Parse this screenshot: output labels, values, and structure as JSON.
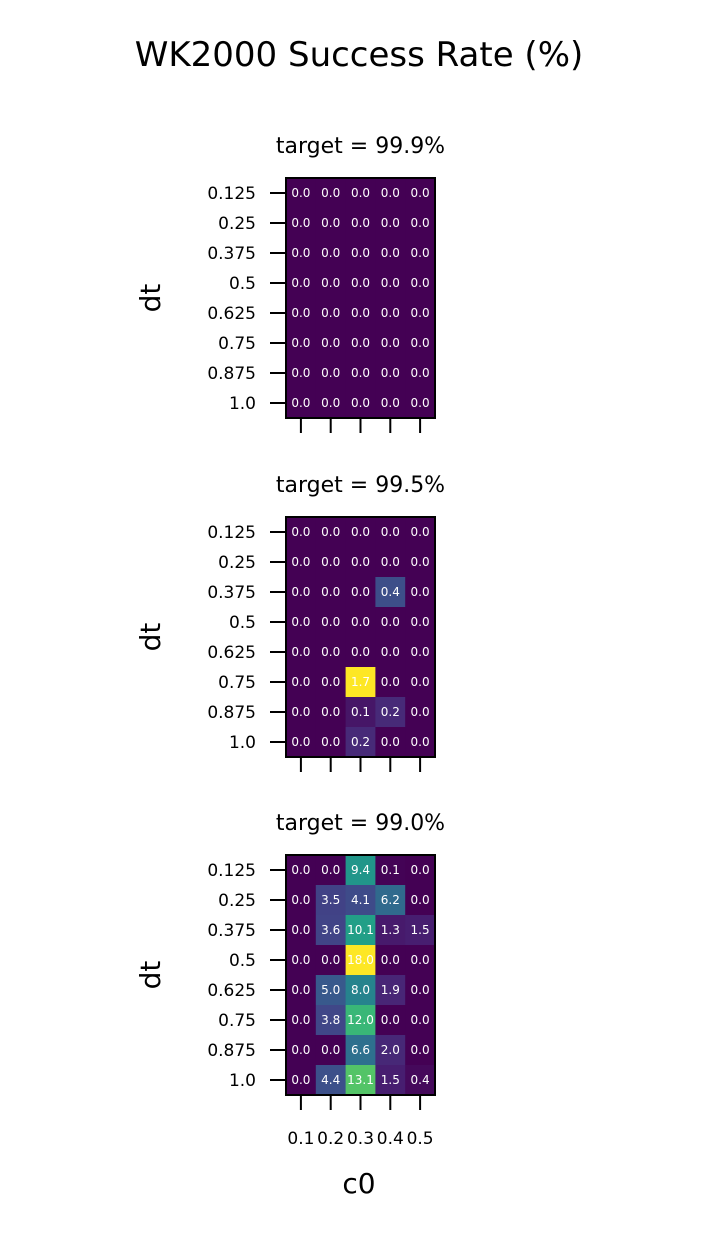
{
  "chart_data": {
    "type": "heatmap",
    "title": "WK2000 Success Rate (%)",
    "xlabel": "c0",
    "ylabel": "dt",
    "x": [
      "0.1",
      "0.2",
      "0.3",
      "0.4",
      "0.5"
    ],
    "y": [
      "0.125",
      "0.25",
      "0.375",
      "0.5",
      "0.625",
      "0.75",
      "0.875",
      "1.0"
    ],
    "colormap": "viridis",
    "panels": [
      {
        "title": "target = 99.9%",
        "values": [
          [
            0.0,
            0.0,
            0.0,
            0.0,
            0.0
          ],
          [
            0.0,
            0.0,
            0.0,
            0.0,
            0.0
          ],
          [
            0.0,
            0.0,
            0.0,
            0.0,
            0.0
          ],
          [
            0.0,
            0.0,
            0.0,
            0.0,
            0.0
          ],
          [
            0.0,
            0.0,
            0.0,
            0.0,
            0.0
          ],
          [
            0.0,
            0.0,
            0.0,
            0.0,
            0.0
          ],
          [
            0.0,
            0.0,
            0.0,
            0.0,
            0.0
          ],
          [
            0.0,
            0.0,
            0.0,
            0.0,
            0.0
          ]
        ],
        "labels": [
          [
            "0.0",
            "0.0",
            "0.0",
            "0.0",
            "0.0"
          ],
          [
            "0.0",
            "0.0",
            "0.0",
            "0.0",
            "0.0"
          ],
          [
            "0.0",
            "0.0",
            "0.0",
            "0.0",
            "0.0"
          ],
          [
            "0.0",
            "0.0",
            "0.0",
            "0.0",
            "0.0"
          ],
          [
            "0.0",
            "0.0",
            "0.0",
            "0.0",
            "0.0"
          ],
          [
            "0.0",
            "0.0",
            "0.0",
            "0.0",
            "0.0"
          ],
          [
            "0.0",
            "0.0",
            "0.0",
            "0.0",
            "0.0"
          ],
          [
            "0.0",
            "0.0",
            "0.0",
            "0.0",
            "0.0"
          ]
        ]
      },
      {
        "title": "target = 99.5%",
        "values": [
          [
            0.0,
            0.0,
            0.0,
            0.0,
            0.0
          ],
          [
            0.0,
            0.0,
            0.0,
            0.0,
            0.0
          ],
          [
            0.0,
            0.0,
            0.0,
            0.4,
            0.0
          ],
          [
            0.0,
            0.0,
            0.0,
            0.0,
            0.0
          ],
          [
            0.0,
            0.0,
            0.0,
            0.0,
            0.0
          ],
          [
            0.0,
            0.0,
            1.7,
            0.0,
            0.0
          ],
          [
            0.0,
            0.0,
            0.1,
            0.2,
            0.0
          ],
          [
            0.0,
            0.0,
            0.2,
            0.0,
            0.0
          ]
        ],
        "labels": [
          [
            "0.0",
            "0.0",
            "0.0",
            "0.0",
            "0.0"
          ],
          [
            "0.0",
            "0.0",
            "0.0",
            "0.0",
            "0.0"
          ],
          [
            "0.0",
            "0.0",
            "0.0",
            "0.4",
            "0.0"
          ],
          [
            "0.0",
            "0.0",
            "0.0",
            "0.0",
            "0.0"
          ],
          [
            "0.0",
            "0.0",
            "0.0",
            "0.0",
            "0.0"
          ],
          [
            "0.0",
            "0.0",
            "1.7",
            "0.0",
            "0.0"
          ],
          [
            "0.0",
            "0.0",
            "0.1",
            "0.2",
            "0.0"
          ],
          [
            "0.0",
            "0.0",
            "0.2",
            "0.0",
            "0.0"
          ]
        ]
      },
      {
        "title": "target = 99.0%",
        "values": [
          [
            0.0,
            0.0,
            9.4,
            0.1,
            0.0
          ],
          [
            0.0,
            3.5,
            4.1,
            6.2,
            0.0
          ],
          [
            0.0,
            3.6,
            10.1,
            1.3,
            1.5
          ],
          [
            0.0,
            0.0,
            18.0,
            0.0,
            0.0
          ],
          [
            0.0,
            5.0,
            8.0,
            1.9,
            0.0
          ],
          [
            0.0,
            3.8,
            12.0,
            0.0,
            0.0
          ],
          [
            0.0,
            0.0,
            6.6,
            2.0,
            0.0
          ],
          [
            0.0,
            4.4,
            13.1,
            1.5,
            0.4
          ]
        ],
        "labels": [
          [
            "0.0",
            "0.0",
            "9.4",
            "0.1",
            "0.0"
          ],
          [
            "0.0",
            "3.5",
            "4.1",
            "6.2",
            "0.0"
          ],
          [
            "0.0",
            "3.6",
            "10.1",
            "1.3",
            "1.5"
          ],
          [
            "0.0",
            "0.0",
            "18.0",
            "0.0",
            "0.0"
          ],
          [
            "0.0",
            "5.0",
            "8.0",
            "1.9",
            "0.0"
          ],
          [
            "0.0",
            "3.8",
            "12.0",
            "0.0",
            "0.0"
          ],
          [
            "0.0",
            "0.0",
            "6.6",
            "2.0",
            "0.0"
          ],
          [
            "0.0",
            "4.4",
            "13.1",
            "1.5",
            "0.4"
          ]
        ]
      }
    ]
  }
}
